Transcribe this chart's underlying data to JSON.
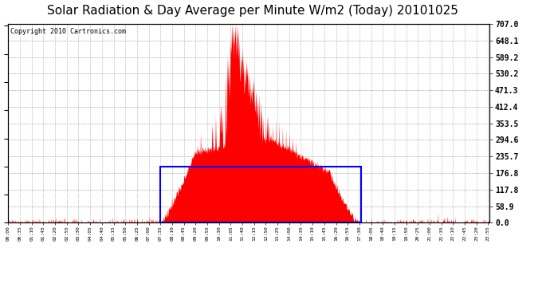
{
  "title": "Solar Radiation & Day Average per Minute W/m2 (Today) 20101025",
  "copyright": "Copyright 2010 Cartronics.com",
  "ymax": 707.0,
  "yticks": [
    0.0,
    58.9,
    117.8,
    176.8,
    235.7,
    294.6,
    353.5,
    412.4,
    471.3,
    530.2,
    589.2,
    648.1,
    707.0
  ],
  "bg_color": "#ffffff",
  "fill_color": "#ff0000",
  "avg_box_color": "#0000ff",
  "grid_color": "#b0b0b0",
  "title_color": "#000000",
  "title_fontsize": 11,
  "copyright_fontsize": 6,
  "rise_min": 455,
  "set_min": 1055,
  "avg_value": 200.0,
  "peak_minute": 685
}
